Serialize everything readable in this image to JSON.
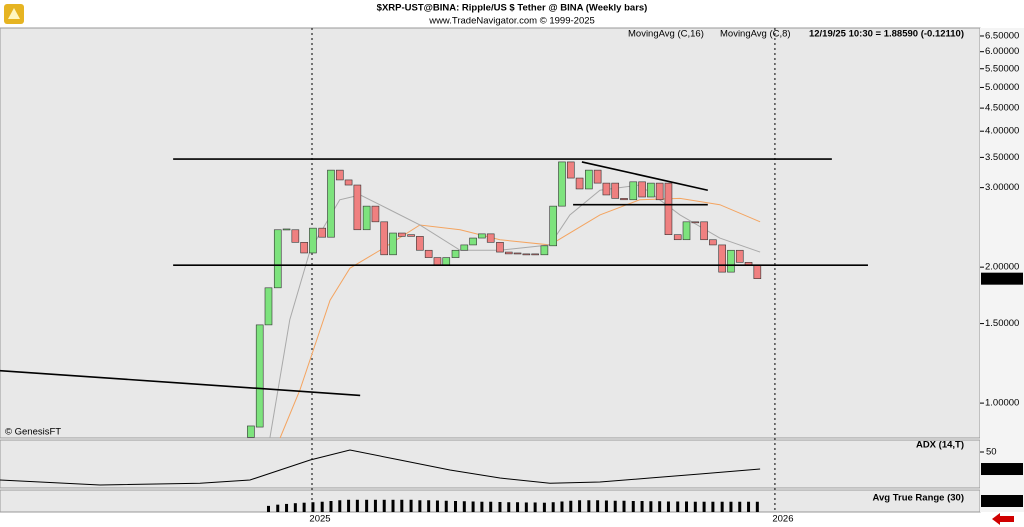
{
  "chart_data": [
    {
      "type": "candlestick",
      "title": "$XRP-UST@BINA:  Ripple/US $ Tether @ BINA  (Weekly bars)",
      "subtitle": "www.TradeNavigator.com © 1999-2025",
      "status": "12/19/25 10:30 = 1.88590 (-0.12110)",
      "credit": "© GenesisFT",
      "log_scale": true,
      "up_color": "#7de37d",
      "down_color": "#ef8080",
      "xlim": [
        2024.326,
        2026.443
      ],
      "xticks": [
        2025,
        2026
      ],
      "ylim": [
        0.837,
        6.77
      ],
      "yticks": [
        {
          "value": 6.5,
          "label": "6.50000"
        },
        {
          "value": 6.0,
          "label": "6.00000"
        },
        {
          "value": 5.5,
          "label": "5.50000"
        },
        {
          "value": 5.0,
          "label": "5.00000"
        },
        {
          "value": 4.5,
          "label": "4.50000"
        },
        {
          "value": 4.0,
          "label": "4.00000"
        },
        {
          "value": 3.5,
          "label": "3.50000"
        },
        {
          "value": 3.0,
          "label": "3.00000"
        },
        {
          "value": 2.0,
          "label": "2.00000"
        },
        {
          "value": 1.5,
          "label": "1.50000"
        },
        {
          "value": 1.0,
          "label": "1.00000"
        }
      ],
      "x": [
        2024.868,
        2024.887,
        2024.906,
        2024.926,
        2024.945,
        2024.964,
        2024.983,
        2025.002,
        2025.022,
        2025.041,
        2025.06,
        2025.079,
        2025.098,
        2025.118,
        2025.137,
        2025.156,
        2025.175,
        2025.194,
        2025.214,
        2025.233,
        2025.252,
        2025.271,
        2025.29,
        2025.31,
        2025.329,
        2025.348,
        2025.367,
        2025.386,
        2025.406,
        2025.425,
        2025.444,
        2025.463,
        2025.482,
        2025.502,
        2025.521,
        2025.54,
        2025.559,
        2025.578,
        2025.598,
        2025.617,
        2025.636,
        2025.655,
        2025.674,
        2025.694,
        2025.713,
        2025.732,
        2025.751,
        2025.77,
        2025.79,
        2025.809,
        2025.828,
        2025.847,
        2025.866,
        2025.886,
        2025.905,
        2025.924,
        2025.943,
        2025.962
      ],
      "open": [
        0.84,
        0.885,
        1.49,
        1.8,
        2.42,
        2.42,
        2.27,
        2.15,
        2.44,
        2.33,
        3.28,
        3.12,
        3.04,
        2.42,
        2.73,
        2.52,
        2.13,
        2.38,
        2.36,
        2.34,
        2.18,
        2.1,
        2.02,
        2.1,
        2.18,
        2.24,
        2.32,
        2.37,
        2.27,
        2.16,
        2.15,
        2.14,
        2.14,
        2.13,
        2.23,
        2.73,
        3.42,
        3.15,
        2.98,
        3.28,
        3.07,
        3.07,
        2.84,
        2.82,
        3.09,
        2.86,
        3.07,
        3.07,
        2.36,
        2.3,
        2.52,
        2.52,
        2.3,
        2.24,
        1.95,
        2.18,
        2.05,
        2.02
      ],
      "close": [
        0.89,
        1.49,
        1.8,
        2.42,
        2.43,
        2.27,
        2.15,
        2.44,
        2.33,
        3.28,
        3.12,
        3.04,
        2.42,
        2.73,
        2.52,
        2.13,
        2.38,
        2.34,
        2.34,
        2.18,
        2.1,
        2.02,
        2.1,
        2.18,
        2.24,
        2.32,
        2.37,
        2.27,
        2.16,
        2.14,
        2.14,
        2.13,
        2.13,
        2.23,
        2.73,
        3.42,
        3.15,
        2.98,
        3.28,
        3.07,
        2.89,
        2.84,
        2.82,
        3.09,
        2.86,
        3.07,
        2.82,
        2.36,
        2.3,
        2.52,
        2.51,
        2.3,
        2.24,
        1.95,
        2.18,
        2.05,
        2.02,
        1.8859
      ],
      "price_label": {
        "value": 1.8859,
        "label": "1.88590"
      },
      "series": [
        {
          "name": "MovingAvg (C,16)",
          "color": "#f4a460",
          "x": [
            2024.931,
            2024.974,
            2025.039,
            2025.082,
            2025.147,
            2025.233,
            2025.32,
            2025.406,
            2025.514,
            2025.622,
            2025.708,
            2025.795,
            2025.881,
            2025.968
          ],
          "values": [
            0.837,
            1.07,
            1.69,
            1.99,
            2.18,
            2.48,
            2.42,
            2.3,
            2.24,
            2.61,
            2.82,
            2.84,
            2.75,
            2.52
          ]
        },
        {
          "name": "MovingAvg (C,8)",
          "color": "#a9a9a9",
          "x": [
            2024.909,
            2024.952,
            2024.996,
            2025.06,
            2025.104,
            2025.168,
            2025.233,
            2025.32,
            2025.406,
            2025.514,
            2025.557,
            2025.622,
            2025.708,
            2025.795,
            2025.881,
            2025.968
          ],
          "values": [
            0.837,
            1.53,
            2.18,
            2.82,
            2.89,
            2.68,
            2.48,
            2.18,
            2.18,
            2.24,
            2.61,
            2.96,
            3.04,
            2.61,
            2.32,
            2.16
          ]
        }
      ],
      "trendlines": [
        {
          "x": [
            2024.7,
            2026.123
          ],
          "y": [
            3.47,
            3.47
          ]
        },
        {
          "x": [
            2024.7,
            2026.201
          ],
          "y": [
            2.02,
            2.02
          ]
        },
        {
          "x": [
            2025.583,
            2025.855
          ],
          "y": [
            3.42,
            2.96
          ]
        },
        {
          "x": [
            2025.564,
            2025.855
          ],
          "y": [
            2.75,
            2.75
          ]
        },
        {
          "x": [
            2024.326,
            2025.104
          ],
          "y": [
            1.18,
            1.04
          ]
        }
      ]
    },
    {
      "type": "line",
      "title": "ADX (14,T)",
      "color": "#000000",
      "ylim": [
        5,
        65
      ],
      "yticks": [
        50
      ],
      "x": [
        2024.326,
        2024.542,
        2024.758,
        2024.866,
        2024.996,
        2025.082,
        2025.19,
        2025.298,
        2025.406,
        2025.514,
        2025.622,
        2025.73,
        2025.838,
        2025.968
      ],
      "values": [
        15,
        8.75,
        11,
        15,
        40,
        52.5,
        40,
        27.5,
        17.5,
        11,
        12.5,
        17.5,
        22.5,
        28.73
      ]
    },
    {
      "type": "bar",
      "title": "Avg True Range (30)",
      "color": "#000000",
      "ylim": [
        0,
        0.9
      ],
      "x": [
        2024.868,
        2024.887,
        2024.906,
        2024.926,
        2024.945,
        2024.964,
        2024.983,
        2025.002,
        2025.022,
        2025.041,
        2025.06,
        2025.079,
        2025.098,
        2025.118,
        2025.137,
        2025.156,
        2025.175,
        2025.194,
        2025.214,
        2025.233,
        2025.252,
        2025.271,
        2025.29,
        2025.31,
        2025.329,
        2025.348,
        2025.367,
        2025.386,
        2025.406,
        2025.425,
        2025.444,
        2025.463,
        2025.482,
        2025.502,
        2025.521,
        2025.54,
        2025.559,
        2025.578,
        2025.598,
        2025.617,
        2025.636,
        2025.655,
        2025.674,
        2025.694,
        2025.713,
        2025.732,
        2025.751,
        2025.77,
        2025.79,
        2025.809,
        2025.828,
        2025.847,
        2025.866,
        2025.886,
        2025.905,
        2025.924,
        2025.943,
        2025.962
      ],
      "values": [
        null,
        null,
        0.25,
        0.3,
        0.33,
        0.36,
        0.38,
        0.4,
        0.42,
        0.45,
        0.48,
        0.5,
        0.5,
        0.5,
        0.5,
        0.5,
        0.5,
        0.5,
        0.5,
        0.48,
        0.48,
        0.47,
        0.46,
        0.45,
        0.44,
        0.43,
        0.42,
        0.42,
        0.41,
        0.4,
        0.4,
        0.39,
        0.39,
        0.38,
        0.4,
        0.43,
        0.46,
        0.48,
        0.48,
        0.48,
        0.47,
        0.46,
        0.46,
        0.45,
        0.45,
        0.44,
        0.44,
        0.43,
        0.43,
        0.43,
        0.42,
        0.42,
        0.42,
        0.42,
        0.42,
        0.42,
        0.42,
        0.4192
      ]
    }
  ]
}
